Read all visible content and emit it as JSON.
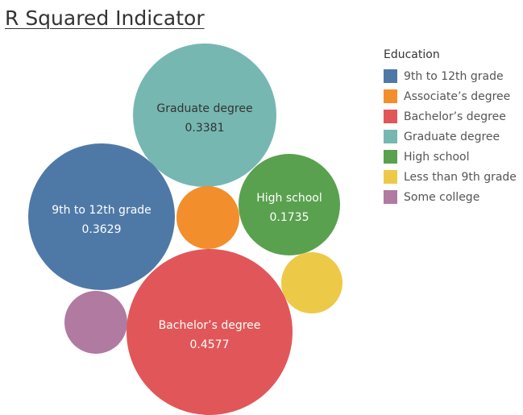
{
  "title": "R Squared Indicator",
  "chart_data": {
    "type": "bubble",
    "legend": {
      "title": "Education",
      "placement": "right",
      "entries": [
        {
          "label": "9th to 12th grade",
          "color": "#4e79a7"
        },
        {
          "label": "Associate’s degree",
          "color": "#f28e2b"
        },
        {
          "label": "Bachelor’s degree",
          "color": "#e15759"
        },
        {
          "label": "Graduate degree",
          "color": "#76b7b2"
        },
        {
          "label": "High school",
          "color": "#59a14f"
        },
        {
          "label": "Less than 9th grade",
          "color": "#edc948"
        },
        {
          "label": "Some college",
          "color": "#b07aa1"
        }
      ]
    },
    "bubbles": [
      {
        "category": "Graduate degree",
        "value": 0.3381,
        "value_label": "0.3381",
        "show_label": true,
        "color": "#76b7b2",
        "label_color": "#333333"
      },
      {
        "category": "9th to 12th grade",
        "value": 0.3629,
        "value_label": "0.3629",
        "show_label": true,
        "color": "#4e79a7",
        "label_color": "#ffffff"
      },
      {
        "category": "Associate’s degree",
        "value": 0.06,
        "value_label": "",
        "show_label": false,
        "color": "#f28e2b",
        "label_color": "#ffffff"
      },
      {
        "category": "High school",
        "value": 0.1735,
        "value_label": "0.1735",
        "show_label": true,
        "color": "#59a14f",
        "label_color": "#ffffff"
      },
      {
        "category": "Less than 9th grade",
        "value": 0.06,
        "value_label": "",
        "show_label": false,
        "color": "#edc948",
        "label_color": "#ffffff"
      },
      {
        "category": "Some college",
        "value": 0.06,
        "value_label": "",
        "show_label": false,
        "color": "#b07aa1",
        "label_color": "#ffffff"
      },
      {
        "category": "Bachelor’s degree",
        "value": 0.4577,
        "value_label": "0.4577",
        "show_label": true,
        "color": "#e15759",
        "label_color": "#ffffff"
      }
    ]
  }
}
